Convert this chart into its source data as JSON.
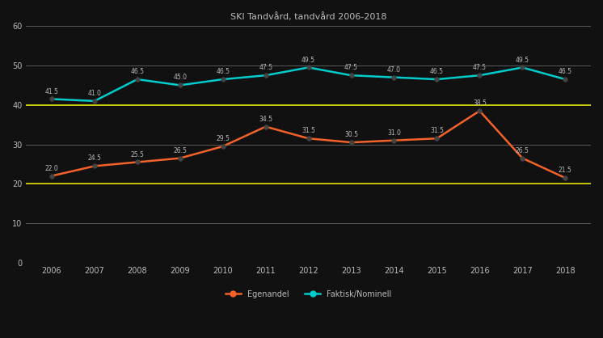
{
  "title": "SKI Tandvård, tandvård 2006-2018",
  "years": [
    2006,
    2007,
    2008,
    2009,
    2010,
    2011,
    2012,
    2013,
    2014,
    2015,
    2016,
    2017,
    2018
  ],
  "series1_label": "Egenandel",
  "series1_color": "#F4622A",
  "series2_label": "Faktisk/Nominell",
  "series2_color": "#00CCCC",
  "series1_values": [
    22.0,
    24.5,
    25.5,
    26.5,
    29.5,
    34.5,
    31.5,
    30.5,
    31.0,
    31.5,
    38.5,
    26.5,
    21.5
  ],
  "series2_values": [
    41.5,
    41.0,
    46.5,
    45.0,
    46.5,
    47.5,
    49.5,
    47.5,
    47.0,
    46.5,
    47.5,
    49.5,
    46.5
  ],
  "ylim": [
    0,
    60
  ],
  "yticks": [
    0,
    10,
    20,
    30,
    40,
    50,
    60
  ],
  "yellow_lines": [
    20,
    40
  ],
  "bg_color": "#111111",
  "plot_bg_color": "#111111",
  "grid_color": "#666666",
  "yellow_color": "#DDDD00",
  "text_color": "#bbbbbb",
  "title_color": "#bbbbbb",
  "marker_fill": "#444444",
  "marker_edge": "#444444",
  "label_fontsize": 5.5,
  "tick_fontsize": 7,
  "title_fontsize": 8,
  "legend_fontsize": 7,
  "line_width": 1.8,
  "marker_size": 4
}
